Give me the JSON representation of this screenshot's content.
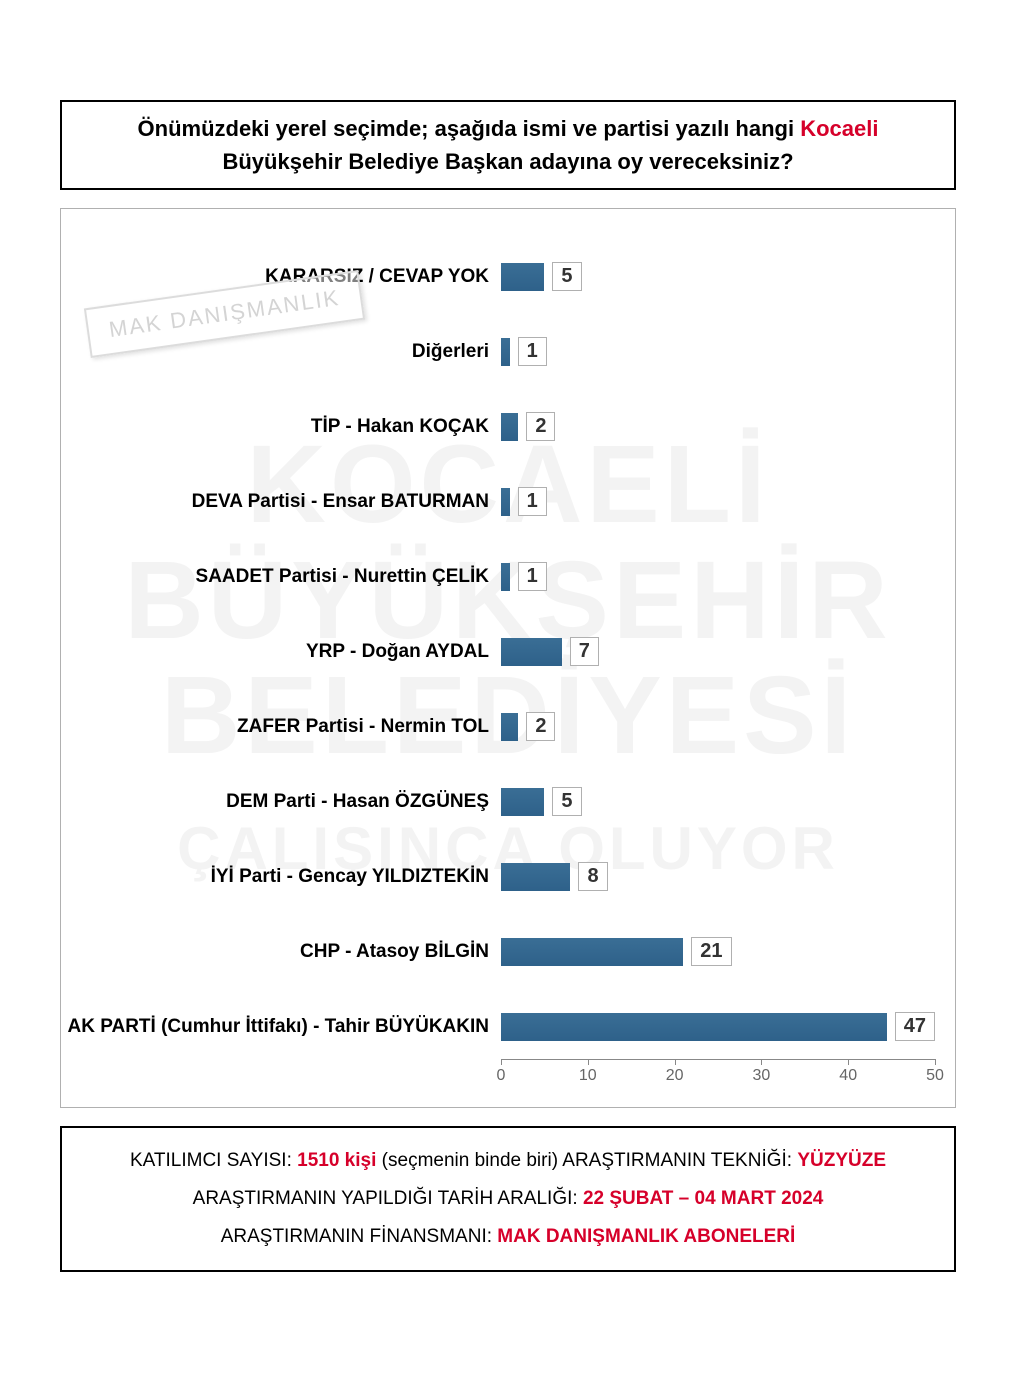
{
  "question": {
    "line1_before": "Önümüzdeki yerel seçimde; aşağıda ismi ve partisi yazılı hangi ",
    "line1_highlight": "Kocaeli",
    "line2": "Büyükşehir Belediye Başkan adayına oy vereceksiniz?"
  },
  "stamp": "MAK DANIŞMANLIK",
  "watermark_line1": "KOCAELİ",
  "watermark_line2": "BÜYÜKŞEHİR",
  "watermark_line3": "BELEDİYESİ",
  "watermark_line4": "ÇALIŞINCA OLUYOR",
  "chart": {
    "type": "bar-horizontal",
    "bar_color": "#2e618a",
    "value_box_border": "#b0b0b0",
    "background": "#ffffff",
    "xlim": [
      0,
      50
    ],
    "xtick_step": 10,
    "xticks": [
      0,
      10,
      20,
      30,
      40,
      50
    ],
    "label_fontsize": 19,
    "value_fontsize": 20,
    "bars": [
      {
        "label": "KARARSIZ / CEVAP YOK",
        "value": 5
      },
      {
        "label": "Diğerleri",
        "value": 1
      },
      {
        "label": "TİP - Hakan KOÇAK",
        "value": 2
      },
      {
        "label": "DEVA Partisi - Ensar BATURMAN",
        "value": 1
      },
      {
        "label": "SAADET Partisi - Nurettin ÇELİK",
        "value": 1
      },
      {
        "label": "YRP - Doğan AYDAL",
        "value": 7
      },
      {
        "label": "ZAFER Partisi - Nermin TOL",
        "value": 2
      },
      {
        "label": "DEM Parti - Hasan ÖZGÜNEŞ",
        "value": 5
      },
      {
        "label": "İYİ Parti - Gencay YILDIZTEKİN",
        "value": 8
      },
      {
        "label": "CHP - Atasoy BİLGİN",
        "value": 21
      },
      {
        "label": "AK PARTİ (Cumhur İttifakı) - Tahir BÜYÜKAKIN",
        "value": 47
      }
    ]
  },
  "footer": {
    "participants_label": "KATILIMCI SAYISI: ",
    "participants_value": "1510 kişi",
    "participants_note": " (seçmenin binde biri)   ",
    "technique_label": "ARAŞTIRMANIN TEKNİĞİ: ",
    "technique_value": "YÜZYÜZE",
    "date_label": "ARAŞTIRMANIN YAPILDIĞI TARİH ARALIĞI: ",
    "date_value": "22 ŞUBAT – 04 MART 2024",
    "finance_label": "ARAŞTIRMANIN FİNANSMANI: ",
    "finance_value": "MAK DANIŞMANLIK ABONELERİ"
  }
}
